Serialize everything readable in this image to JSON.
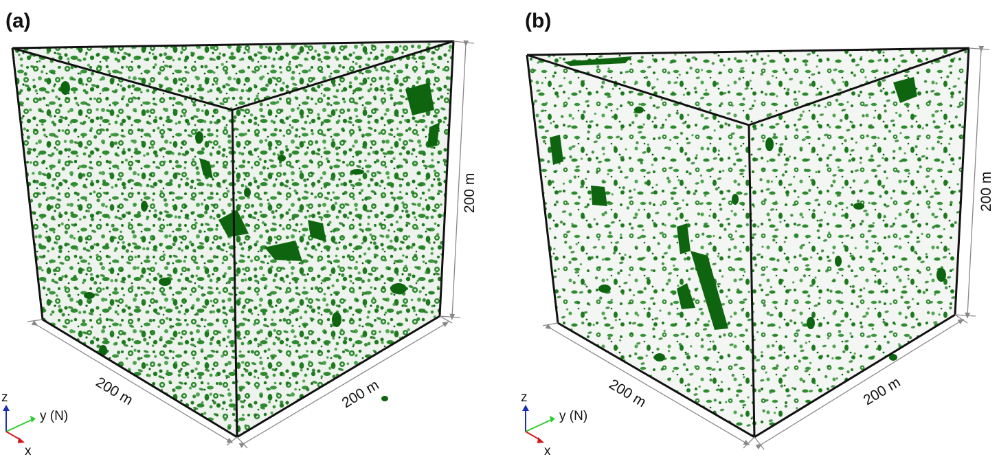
{
  "panels": [
    {
      "id": "a",
      "label": "(a)",
      "dimensions": {
        "left_edge": "200 m",
        "right_edge": "200 m",
        "height": "200 m"
      },
      "axes": {
        "z": "z",
        "y": "y (N)",
        "x": "x"
      }
    },
    {
      "id": "b",
      "label": "(b)",
      "dimensions": {
        "left_edge": "200 m",
        "right_edge": "200 m",
        "height": "200 m"
      },
      "axes": {
        "z": "z",
        "y": "y (N)",
        "x": "x"
      }
    }
  ],
  "colors": {
    "fracture_fill": "#1f7a1f",
    "fracture_dark": "#0d5c0d",
    "background_speckle": "#d9e6d9",
    "edge": "#111111",
    "dimension_line": "#888888",
    "axis_z": "#1a2fb0",
    "axis_y": "#2ecc2e",
    "axis_x": "#d11a1a"
  }
}
